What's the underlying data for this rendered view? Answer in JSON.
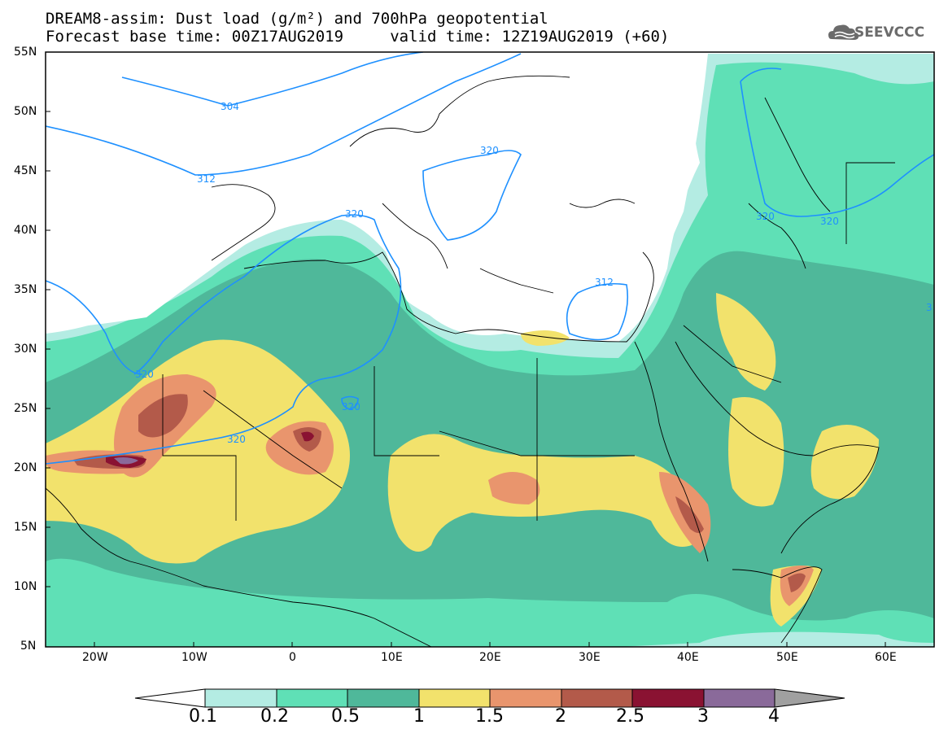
{
  "title_line1": "DREAM8-assim: Dust load (g/m²) and 700hPa geopotential",
  "title_line2": "Forecast base time: 00Z17AUG2019     valid time: 12Z19AUG2019 (+60)",
  "logo_text": "SEEVCCC",
  "logo_icon": "cloud-icon",
  "lat_labels": [
    "55N",
    "50N",
    "45N",
    "40N",
    "35N",
    "30N",
    "25N",
    "20N",
    "15N",
    "10N",
    "5N"
  ],
  "lon_labels": [
    "20W",
    "10W",
    "0",
    "10E",
    "20E",
    "30E",
    "40E",
    "50E",
    "60E"
  ],
  "contour_labels": [
    "304",
    "312",
    "320",
    "320",
    "320",
    "320",
    "320",
    "312",
    "320",
    "320",
    "3"
  ],
  "colorbar": {
    "labels": [
      "0.1",
      "0.2",
      "0.5",
      "1",
      "1.5",
      "2",
      "2.5",
      "3",
      "4"
    ],
    "colors": [
      "#b4ece3",
      "#5fe0b6",
      "#4fb89a",
      "#f2e26c",
      "#e9956d",
      "#b35a4a",
      "#8a1232",
      "#8a6a9a"
    ],
    "left_arrow_color": "#ffffff",
    "right_arrow_color": "#a0a0a0"
  },
  "contour_color": "#1e90ff"
}
